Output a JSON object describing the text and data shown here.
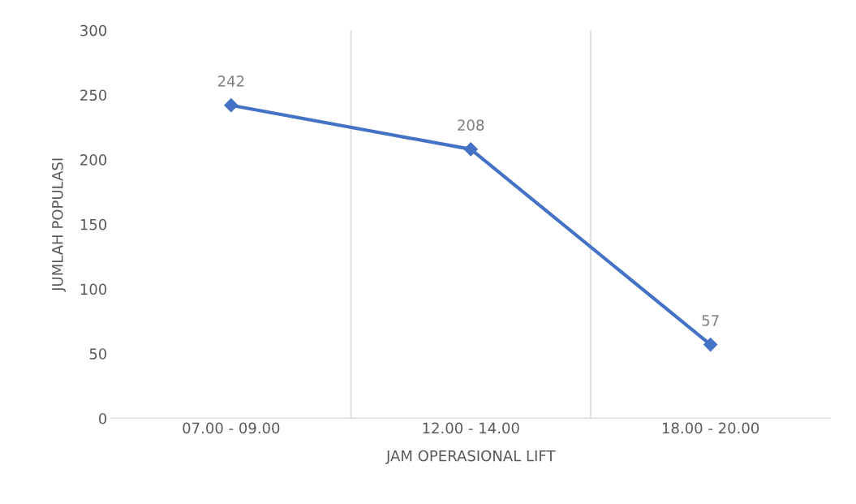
{
  "chart_data": {
    "type": "line",
    "xlabel": "JAM OPERASIONAL LIFT",
    "ylabel": "JUMLAH POPULASI",
    "categories": [
      "07.00 - 09.00",
      "12.00 - 14.00",
      "18.00 - 20.00"
    ],
    "series": [
      {
        "color": "#4472c4",
        "values": [
          242,
          208,
          57
        ]
      }
    ],
    "ylim": [
      0,
      300
    ],
    "yticks": [
      0,
      50,
      100,
      150,
      200,
      250,
      300
    ],
    "grid": "x",
    "marker": "diamond",
    "line_style": "solid",
    "data_labels": true,
    "legend": false
  }
}
